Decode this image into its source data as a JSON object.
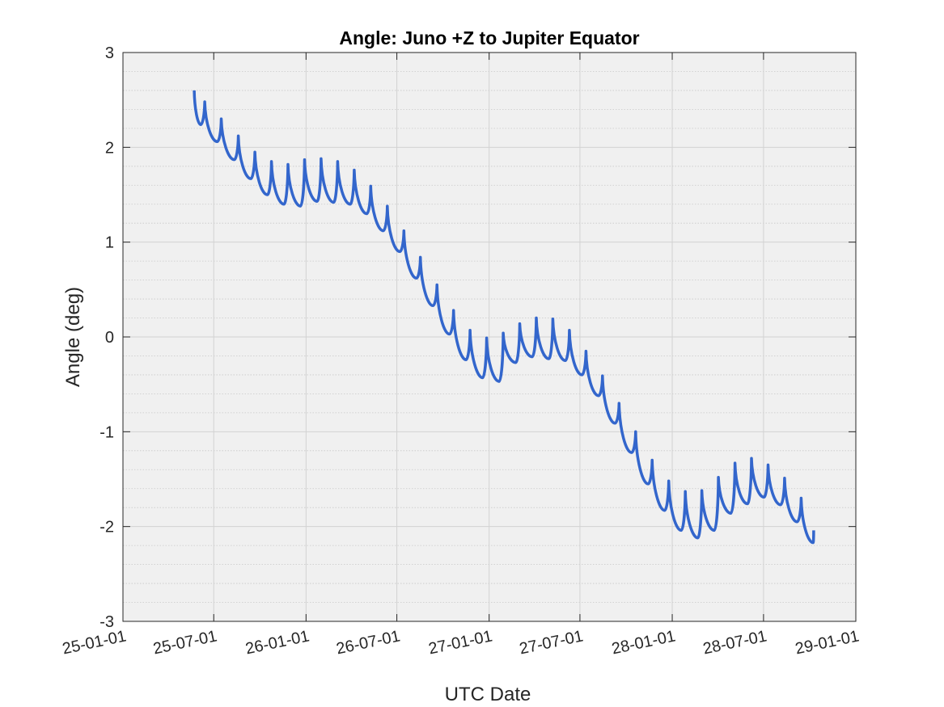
{
  "chart_data": {
    "type": "line",
    "title": "Angle: Juno +Z to Jupiter Equator",
    "xlabel": "UTC Date",
    "ylabel": "Angle (deg)",
    "ylim": [
      -3,
      3
    ],
    "xlim": [
      "2025-01-01",
      "2029-01-01"
    ],
    "xticks": [
      {
        "date": "2025-01-01",
        "label": "25-01-01"
      },
      {
        "date": "2025-07-01",
        "label": "25-07-01"
      },
      {
        "date": "2026-01-01",
        "label": "26-01-01"
      },
      {
        "date": "2026-07-01",
        "label": "26-07-01"
      },
      {
        "date": "2027-01-01",
        "label": "27-01-01"
      },
      {
        "date": "2027-07-01",
        "label": "27-07-01"
      },
      {
        "date": "2028-01-01",
        "label": "28-01-01"
      },
      {
        "date": "2028-07-01",
        "label": "28-07-01"
      },
      {
        "date": "2029-01-01",
        "label": "29-01-01"
      }
    ],
    "yticks": [
      -3,
      -2,
      -1,
      0,
      1,
      2,
      3
    ],
    "grid": true,
    "minor_grid": true,
    "line_color": "#3366cc",
    "plot_background": "#f0f0f0",
    "series": [
      {
        "points": [
          {
            "x": "2025-05-23",
            "y": 2.6
          },
          {
            "x": "2025-06-05",
            "y": 2.24
          },
          {
            "x": "2025-06-13",
            "y": 2.48
          },
          {
            "x": "2025-07-08",
            "y": 2.06
          },
          {
            "x": "2025-07-16",
            "y": 2.3
          },
          {
            "x": "2025-08-11",
            "y": 1.87
          },
          {
            "x": "2025-08-19",
            "y": 2.12
          },
          {
            "x": "2025-09-13",
            "y": 1.67
          },
          {
            "x": "2025-09-21",
            "y": 1.95
          },
          {
            "x": "2025-10-16",
            "y": 1.5
          },
          {
            "x": "2025-10-24",
            "y": 1.85
          },
          {
            "x": "2025-11-18",
            "y": 1.4
          },
          {
            "x": "2025-11-26",
            "y": 1.82
          },
          {
            "x": "2025-12-21",
            "y": 1.38
          },
          {
            "x": "2025-12-29",
            "y": 1.87
          },
          {
            "x": "2026-01-23",
            "y": 1.43
          },
          {
            "x": "2026-01-31",
            "y": 1.88
          },
          {
            "x": "2026-02-25",
            "y": 1.42
          },
          {
            "x": "2026-03-05",
            "y": 1.85
          },
          {
            "x": "2026-03-30",
            "y": 1.4
          },
          {
            "x": "2026-04-07",
            "y": 1.76
          },
          {
            "x": "2026-05-02",
            "y": 1.3
          },
          {
            "x": "2026-05-10",
            "y": 1.59
          },
          {
            "x": "2026-06-04",
            "y": 1.12
          },
          {
            "x": "2026-06-12",
            "y": 1.38
          },
          {
            "x": "2026-07-07",
            "y": 0.9
          },
          {
            "x": "2026-07-15",
            "y": 1.12
          },
          {
            "x": "2026-08-09",
            "y": 0.62
          },
          {
            "x": "2026-08-17",
            "y": 0.84
          },
          {
            "x": "2026-09-11",
            "y": 0.33
          },
          {
            "x": "2026-09-19",
            "y": 0.55
          },
          {
            "x": "2026-10-14",
            "y": 0.03
          },
          {
            "x": "2026-10-22",
            "y": 0.28
          },
          {
            "x": "2026-11-16",
            "y": -0.24
          },
          {
            "x": "2026-11-24",
            "y": 0.07
          },
          {
            "x": "2026-12-19",
            "y": -0.43
          },
          {
            "x": "2026-12-27",
            "y": -0.01
          },
          {
            "x": "2027-01-21",
            "y": -0.47
          },
          {
            "x": "2027-01-29",
            "y": 0.04
          },
          {
            "x": "2027-02-23",
            "y": -0.27
          },
          {
            "x": "2027-03-03",
            "y": 0.14
          },
          {
            "x": "2027-03-28",
            "y": -0.21
          },
          {
            "x": "2027-04-05",
            "y": 0.2
          },
          {
            "x": "2027-04-30",
            "y": -0.23
          },
          {
            "x": "2027-05-08",
            "y": 0.19
          },
          {
            "x": "2027-06-02",
            "y": -0.25
          },
          {
            "x": "2027-06-10",
            "y": 0.07
          },
          {
            "x": "2027-07-05",
            "y": -0.4
          },
          {
            "x": "2027-07-13",
            "y": -0.15
          },
          {
            "x": "2027-08-07",
            "y": -0.62
          },
          {
            "x": "2027-08-15",
            "y": -0.41
          },
          {
            "x": "2027-09-09",
            "y": -0.91
          },
          {
            "x": "2027-09-17",
            "y": -0.7
          },
          {
            "x": "2027-10-12",
            "y": -1.22
          },
          {
            "x": "2027-10-20",
            "y": -1.0
          },
          {
            "x": "2027-11-14",
            "y": -1.55
          },
          {
            "x": "2027-11-22",
            "y": -1.3
          },
          {
            "x": "2027-12-17",
            "y": -1.83
          },
          {
            "x": "2027-12-25",
            "y": -1.52
          },
          {
            "x": "2028-01-19",
            "y": -2.04
          },
          {
            "x": "2028-01-27",
            "y": -1.63
          },
          {
            "x": "2028-02-21",
            "y": -2.12
          },
          {
            "x": "2028-02-29",
            "y": -1.62
          },
          {
            "x": "2028-03-25",
            "y": -2.04
          },
          {
            "x": "2028-04-02",
            "y": -1.48
          },
          {
            "x": "2028-04-27",
            "y": -1.86
          },
          {
            "x": "2028-05-05",
            "y": -1.33
          },
          {
            "x": "2028-05-30",
            "y": -1.76
          },
          {
            "x": "2028-06-07",
            "y": -1.28
          },
          {
            "x": "2028-07-02",
            "y": -1.69
          },
          {
            "x": "2028-07-10",
            "y": -1.35
          },
          {
            "x": "2028-08-04",
            "y": -1.77
          },
          {
            "x": "2028-08-12",
            "y": -1.49
          },
          {
            "x": "2028-09-06",
            "y": -1.95
          },
          {
            "x": "2028-09-14",
            "y": -1.7
          },
          {
            "x": "2028-10-08",
            "y": -2.17
          },
          {
            "x": "2028-10-09",
            "y": -2.04
          }
        ]
      }
    ]
  }
}
